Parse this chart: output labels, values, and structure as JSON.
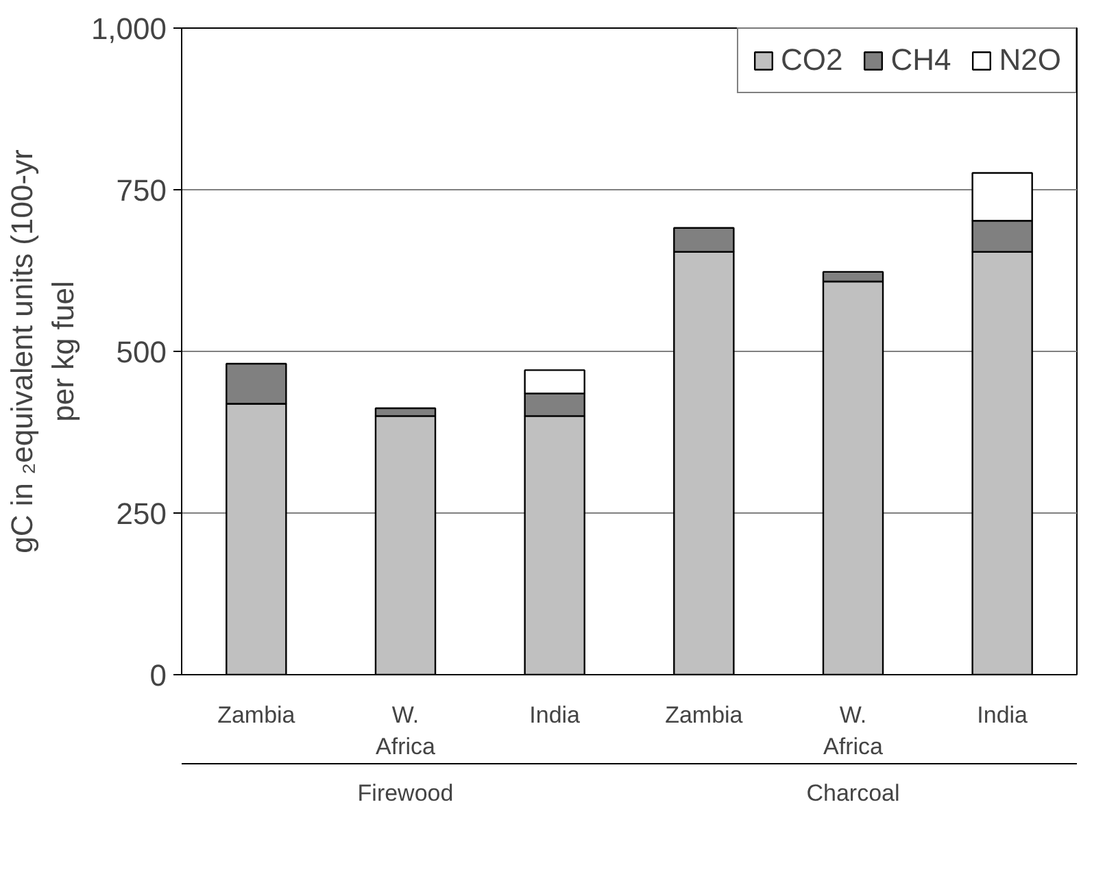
{
  "chart_data": {
    "type": "bar",
    "stacked": true,
    "ylabel": "gC in ₂equivalent units (100-yr\nper kg fuel",
    "categories": [
      "Zambia",
      "W. Africa",
      "India",
      "Zambia",
      "W. Africa",
      "India"
    ],
    "annotations": [
      "Firewood",
      "Charcoal"
    ],
    "series": [
      {
        "name": "CO2",
        "color": "#c0c0c0",
        "values": [
          419,
          400,
          400,
          654,
          608,
          654
        ]
      },
      {
        "name": "CH4",
        "color": "#808080",
        "values": [
          62,
          12,
          35,
          37,
          15,
          48
        ]
      },
      {
        "name": "N2O",
        "color": "#ffffff",
        "values": [
          null,
          null,
          36,
          null,
          null,
          74
        ]
      }
    ],
    "ylim": [
      0,
      1000
    ],
    "yticks": [
      0,
      250,
      500,
      750,
      {
        "value": 1000,
        "label": "1,000"
      }
    ],
    "grid": "y",
    "legend": "top right"
  }
}
